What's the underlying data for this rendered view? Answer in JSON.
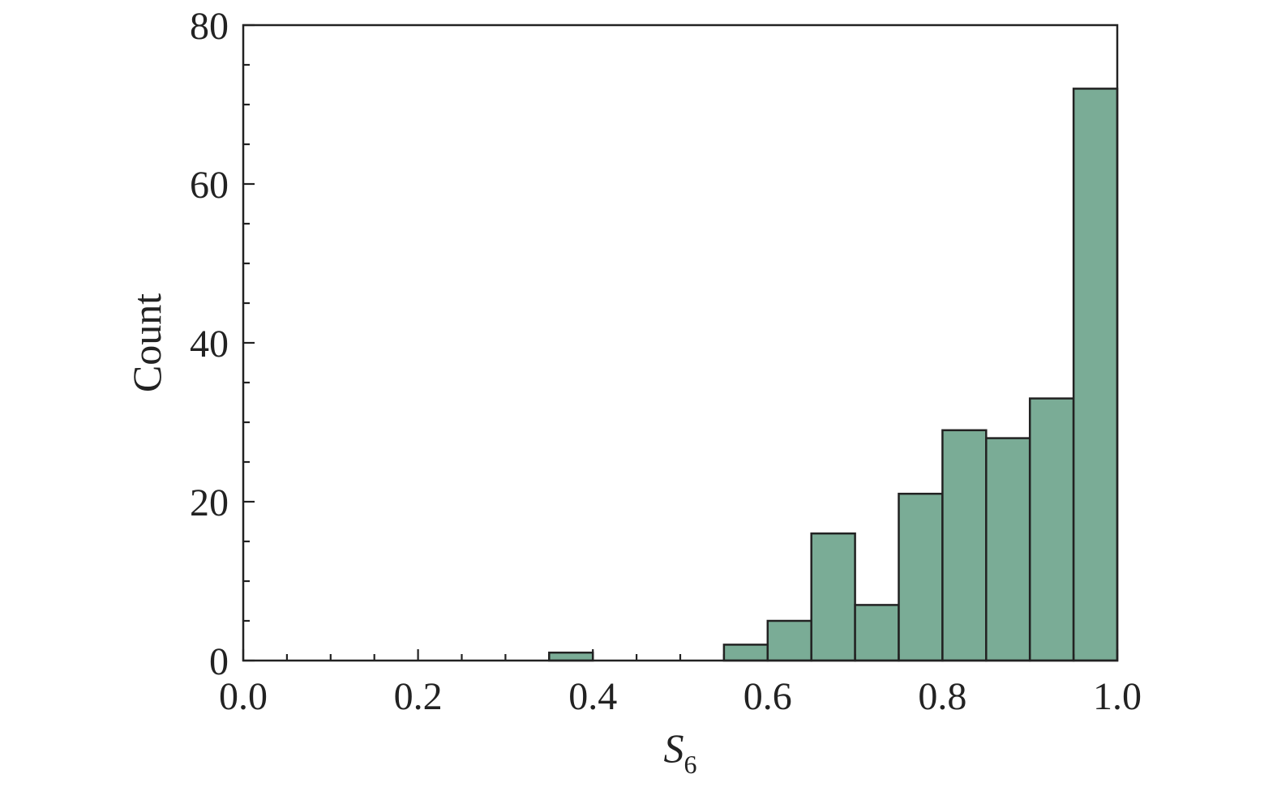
{
  "chart_data": {
    "type": "bar",
    "subtype": "histogram",
    "bin_width": 0.05,
    "bins": [
      {
        "x0": 0.35,
        "x1": 0.4,
        "count": 1
      },
      {
        "x0": 0.55,
        "x1": 0.6,
        "count": 2
      },
      {
        "x0": 0.6,
        "x1": 0.65,
        "count": 5
      },
      {
        "x0": 0.65,
        "x1": 0.7,
        "count": 16
      },
      {
        "x0": 0.7,
        "x1": 0.75,
        "count": 7
      },
      {
        "x0": 0.75,
        "x1": 0.8,
        "count": 21
      },
      {
        "x0": 0.8,
        "x1": 0.85,
        "count": 29
      },
      {
        "x0": 0.85,
        "x1": 0.9,
        "count": 28
      },
      {
        "x0": 0.9,
        "x1": 0.95,
        "count": 33
      },
      {
        "x0": 0.95,
        "x1": 1.0,
        "count": 72
      }
    ],
    "xlabel_main": "S",
    "xlabel_sub": "6",
    "ylabel": "Count",
    "xlim": [
      0.0,
      1.0
    ],
    "ylim": [
      0,
      80
    ],
    "xticks": [
      0.0,
      0.2,
      0.4,
      0.6,
      0.8,
      1.0
    ],
    "xtick_labels": [
      "0.0",
      "0.2",
      "0.4",
      "0.6",
      "0.8",
      "1.0"
    ],
    "yticks": [
      0,
      20,
      40,
      60,
      80
    ],
    "ytick_labels": [
      "0",
      "20",
      "40",
      "60",
      "80"
    ],
    "x_minor_step": 0.05,
    "y_minor_step": 5,
    "grid": false,
    "legend": "none",
    "bar_color": "#7aac96",
    "edge_color": "#222222"
  }
}
